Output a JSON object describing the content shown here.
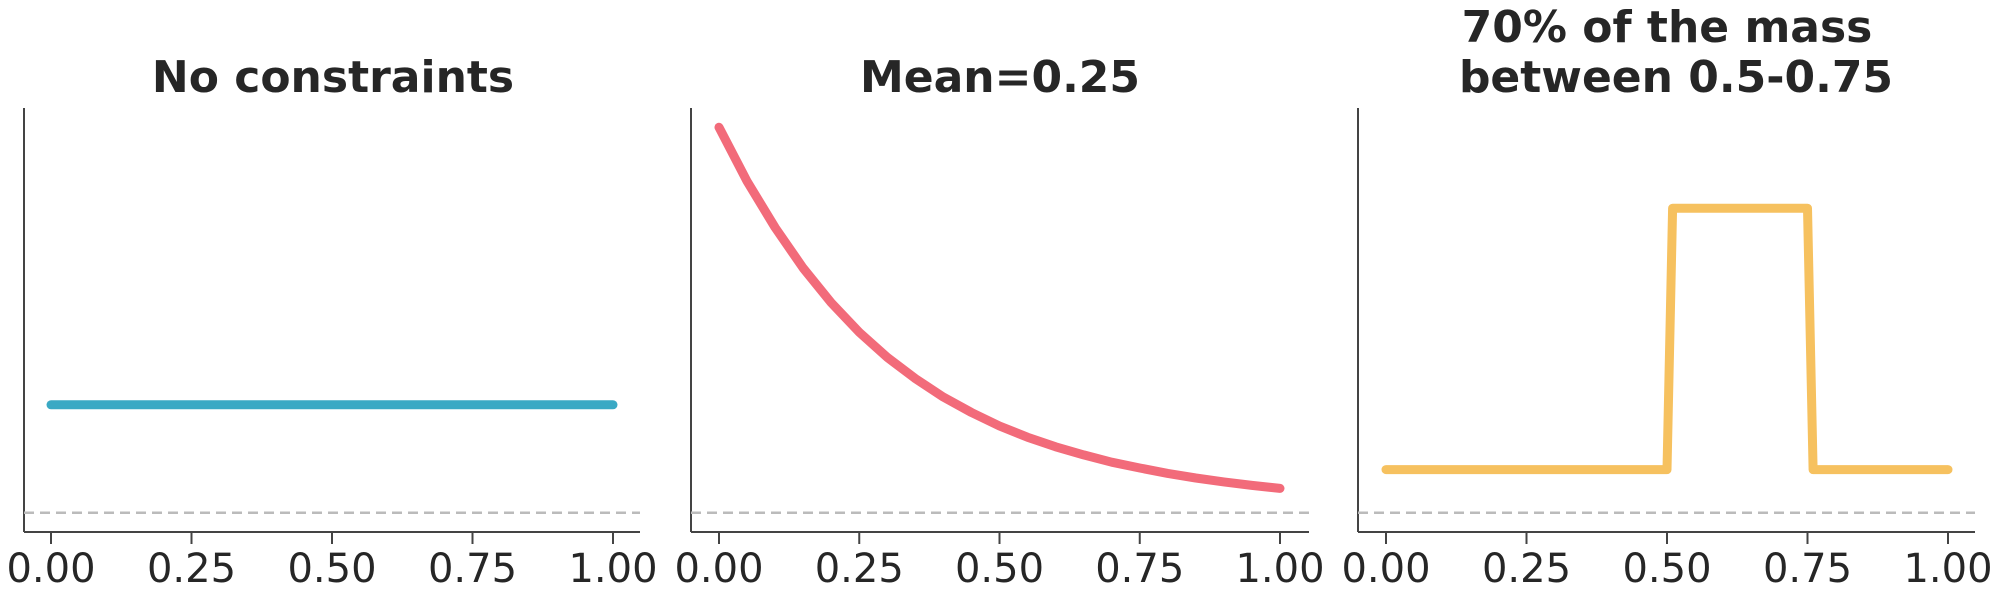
{
  "chart_data": [
    {
      "type": "line",
      "title": "No constraints",
      "xlim": [
        0,
        1
      ],
      "ylim": [
        -0.05,
        1.05
      ],
      "xticks": [
        "0.00",
        "0.25",
        "0.50",
        "0.75",
        "1.00"
      ],
      "baseline_y": 0,
      "color": "#3aa9c4",
      "x": [
        0,
        1
      ],
      "y": [
        0.28,
        0.28
      ]
    },
    {
      "type": "line",
      "title": "Mean=0.25",
      "xlim": [
        0,
        1
      ],
      "ylim": [
        -0.05,
        1.05
      ],
      "xticks": [
        "0.00",
        "0.25",
        "0.50",
        "0.75",
        "1.00"
      ],
      "baseline_y": 0,
      "color": "#f26b7a",
      "x": [
        0,
        0.05,
        0.1,
        0.15,
        0.2,
        0.25,
        0.3,
        0.35,
        0.4,
        0.45,
        0.5,
        0.55,
        0.6,
        0.65,
        0.7,
        0.75,
        0.8,
        0.85,
        0.9,
        0.95,
        1.0
      ],
      "y": [
        1.0,
        0.86,
        0.74,
        0.635,
        0.545,
        0.468,
        0.403,
        0.348,
        0.3,
        0.26,
        0.225,
        0.196,
        0.171,
        0.15,
        0.131,
        0.116,
        0.102,
        0.09,
        0.08,
        0.071,
        0.063
      ]
    },
    {
      "type": "line",
      "title": [
        "70% of the mass",
        "between 0.5-0.75"
      ],
      "xlim": [
        0,
        1
      ],
      "ylim": [
        -0.05,
        1.05
      ],
      "xticks": [
        "0.00",
        "0.25",
        "0.50",
        "0.75",
        "1.00"
      ],
      "baseline_y": 0,
      "color": "#f6c15f",
      "x": [
        0,
        0.5,
        0.51,
        0.75,
        0.76,
        1.0
      ],
      "y": [
        0.112,
        0.112,
        0.79,
        0.79,
        0.112,
        0.112
      ]
    }
  ]
}
